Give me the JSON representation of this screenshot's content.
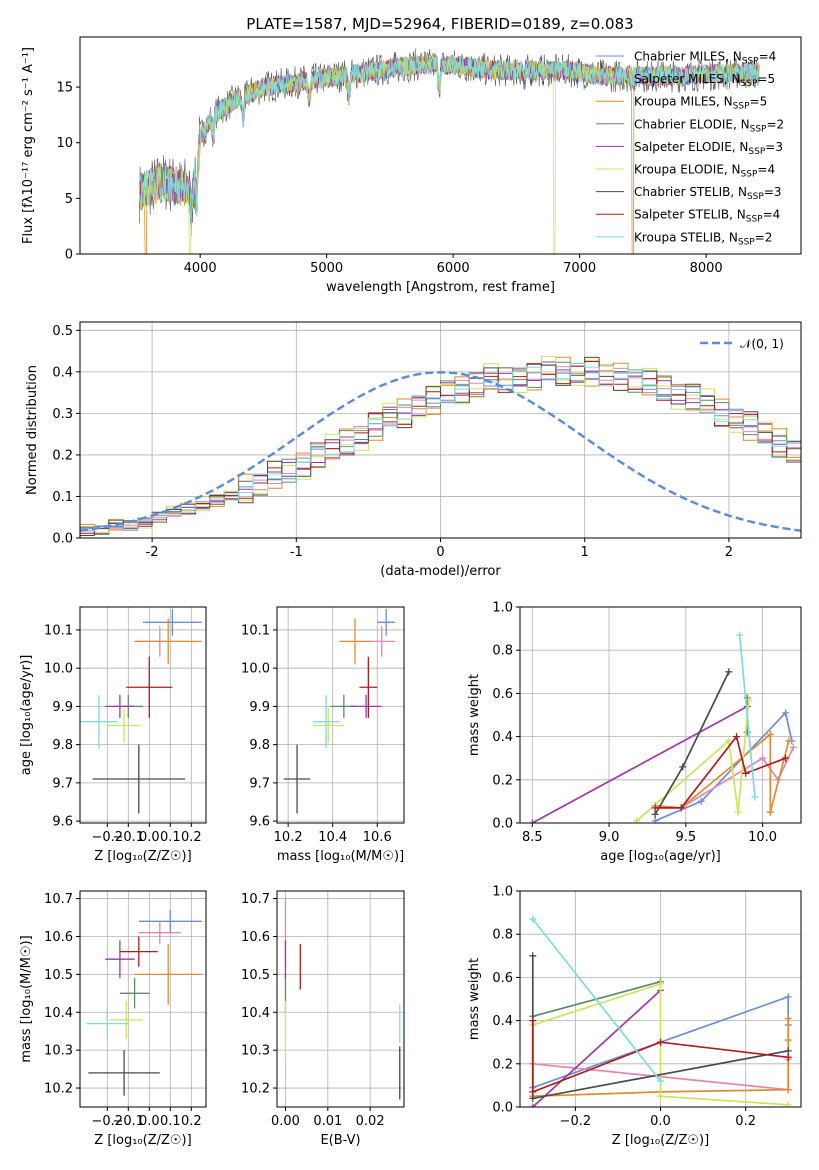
{
  "figure_title": "PLATE=1587, MJD=52964, FIBERID=0189, z=0.083",
  "colors": {
    "Chabrier MILES": "#6a8fd8",
    "Salpeter MILES": "#e487b2",
    "Kroupa MILES": "#e38a2f",
    "Chabrier ELODIE": "#5e8a64",
    "Salpeter ELODIE": "#9b3aa8",
    "Kroupa ELODIE": "#cde45c",
    "Chabrier STELIB": "#4a4a4a",
    "Salpeter STELIB": "#b01c1c",
    "Kroupa STELIB": "#7fdbe0",
    "normal": "#5a8ad8"
  },
  "chart_data": [
    {
      "id": "spectrum",
      "type": "line",
      "xlabel": "wavelength [Angstrom, rest frame]",
      "ylabel": "Flux [f$_\\lambda$10$^{-17}$ erg cm$^{-2}$ s$^{-1}$ A$^{-1}$]",
      "ylabel_display": "Flux [fλ10⁻¹⁷ erg cm⁻² s⁻¹ A⁻¹]",
      "xlim": [
        3050,
        8750
      ],
      "ylim": [
        0,
        19.5
      ],
      "xticks": [
        4000,
        5000,
        6000,
        7000,
        8000
      ],
      "yticks": [
        0,
        5,
        10,
        15
      ],
      "legend_position": "right",
      "legend": [
        "Chabrier MILES, N$_{SSP}$=4",
        "Salpeter MILES, N$_{SSP}$=5",
        "Kroupa MILES, N$_{SSP}$=5",
        "Chabrier ELODIE, N$_{SSP}$=2",
        "Salpeter ELODIE, N$_{SSP}$=3",
        "Kroupa ELODIE, N$_{SSP}$=4",
        "Chabrier STELIB, N$_{SSP}$=3",
        "Salpeter STELIB, N$_{SSP}$=4",
        "Kroupa STELIB, N$_{SSP}$=2"
      ],
      "legend_display": [
        [
          "Chabrier MILES, N",
          "SSP",
          "=4"
        ],
        [
          "Salpeter MILES, N",
          "SSP",
          "=5"
        ],
        [
          "Kroupa MILES, N",
          "SSP",
          "=5"
        ],
        [
          "Chabrier ELODIE, N",
          "SSP",
          "=2"
        ],
        [
          "Salpeter ELODIE, N",
          "SSP",
          "=3"
        ],
        [
          "Kroupa ELODIE, N",
          "SSP",
          "=4"
        ],
        [
          "Chabrier STELIB, N",
          "SSP",
          "=3"
        ],
        [
          "Salpeter STELIB, N",
          "SSP",
          "=4"
        ],
        [
          "Kroupa STELIB, N",
          "SSP",
          "=2"
        ]
      ],
      "continuum": {
        "x": [
          3520,
          3700,
          3850,
          3950,
          4000,
          4100,
          4300,
          4500,
          4800,
          5100,
          5400,
          5700,
          6000,
          6300,
          6600,
          6900,
          7200,
          7500,
          7800,
          8100,
          8400
        ],
        "y": [
          5.5,
          6.5,
          6.0,
          6.5,
          10.5,
          12.5,
          14.0,
          15.0,
          15.5,
          16.0,
          16.5,
          17.0,
          17.0,
          16.5,
          16.5,
          16.5,
          16.0,
          16.0,
          16.0,
          16.2,
          16.3
        ]
      },
      "features": [
        {
          "x": 3930,
          "y": 2.0
        },
        {
          "x": 3970,
          "y": 3.0
        },
        {
          "x": 4102,
          "y": 9.5
        },
        {
          "x": 4340,
          "y": 11.0
        },
        {
          "x": 4861,
          "y": 12.5
        },
        {
          "x": 5175,
          "y": 13.0
        },
        {
          "x": 5890,
          "y": 14.0
        },
        {
          "x": 6563,
          "y": 15.0
        }
      ],
      "spike_drops": [
        {
          "x": 3920,
          "y": 0.0,
          "series": "Kroupa ELODIE"
        },
        {
          "x": 6800,
          "y": 0.0,
          "series": "Kroupa ELODIE"
        },
        {
          "x": 7420,
          "y": 0.0,
          "series": "Kroupa MILES"
        },
        {
          "x": 3570,
          "y": 0.0,
          "series": "Kroupa MILES"
        }
      ]
    },
    {
      "id": "residuals",
      "type": "step-histogram",
      "xlabel": "(data-model)/error",
      "ylabel": "Normed distribution",
      "xlim": [
        -2.5,
        2.5
      ],
      "ylim": [
        0,
        0.52
      ],
      "xticks": [
        -2,
        -1,
        0,
        1,
        2
      ],
      "yticks": [
        0.0,
        0.1,
        0.2,
        0.3,
        0.4,
        0.5
      ],
      "grid": true,
      "legend": [
        "$\\mathcal{N}(0,1)$"
      ],
      "legend_display": "𝒩(0, 1)",
      "legend_position": "top-right",
      "bin_width": 0.1,
      "x_start": -2.5,
      "base": [
        0.02,
        0.02,
        0.03,
        0.03,
        0.04,
        0.05,
        0.06,
        0.07,
        0.08,
        0.09,
        0.1,
        0.12,
        0.13,
        0.15,
        0.16,
        0.18,
        0.2,
        0.21,
        0.23,
        0.25,
        0.27,
        0.29,
        0.3,
        0.32,
        0.33,
        0.35,
        0.36,
        0.37,
        0.38,
        0.38,
        0.39,
        0.39,
        0.4,
        0.4,
        0.4,
        0.4,
        0.39,
        0.39,
        0.38,
        0.37,
        0.36,
        0.35,
        0.34,
        0.32,
        0.3,
        0.29,
        0.27,
        0.25,
        0.23,
        0.21,
        0.19,
        0.18,
        0.16,
        0.14,
        0.13,
        0.11,
        0.1,
        0.09,
        0.07,
        0.06,
        0.05,
        0.05,
        0.04,
        0.03,
        0.03,
        0.03,
        0.02,
        0.02,
        0.02,
        0.02
      ],
      "series_offsets": [
        {
          "name": "Chabrier MILES",
          "amp": 0.02,
          "phase": 0.3
        },
        {
          "name": "Salpeter MILES",
          "amp": 0.02,
          "phase": 1.1
        },
        {
          "name": "Kroupa MILES",
          "amp": 0.035,
          "phase": 2.0
        },
        {
          "name": "Chabrier ELODIE",
          "amp": 0.03,
          "phase": 2.7
        },
        {
          "name": "Salpeter ELODIE",
          "amp": 0.025,
          "phase": 3.4
        },
        {
          "name": "Kroupa ELODIE",
          "amp": 0.04,
          "phase": 4.1
        },
        {
          "name": "Chabrier STELIB",
          "amp": 0.035,
          "phase": 4.8
        },
        {
          "name": "Salpeter STELIB",
          "amp": 0.03,
          "phase": 5.5
        },
        {
          "name": "Kroupa STELIB",
          "amp": 0.025,
          "phase": 6.0
        }
      ]
    },
    {
      "id": "age_vs_Z",
      "type": "errorbar",
      "xlabel": "Z [log$_{10}$($Z/Z_\\odot$)]",
      "xlabel_display": "Z [log₁₀(Z/Z☉)]",
      "ylabel": "age  [log$_{10}$($age/yr$)]",
      "ylabel_display": "age  [log₁₀(age/yr)]",
      "xlim": [
        -0.33,
        0.27
      ],
      "ylim": [
        9.595,
        10.16
      ],
      "xticks": [
        -0.2,
        -0.1,
        0.0,
        0.1,
        0.2
      ],
      "xticklabels": [
        "−0.2",
        "−0.1",
        "0.0",
        "0.1",
        "0.2"
      ],
      "yticks": [
        9.6,
        9.7,
        9.8,
        9.9,
        10.0,
        10.1
      ],
      "grid": true,
      "points": [
        {
          "name": "Chabrier MILES",
          "x": 0.11,
          "y": 10.12,
          "xerr": 0.14,
          "yerr": 0.035
        },
        {
          "name": "Salpeter MILES",
          "x": 0.05,
          "y": 10.07,
          "xerr": 0.11,
          "yerr": 0.04
        },
        {
          "name": "Kroupa MILES",
          "x": 0.09,
          "y": 10.07,
          "xerr": 0.16,
          "yerr": 0.06
        },
        {
          "name": "Chabrier ELODIE",
          "x": -0.1,
          "y": 9.9,
          "xerr": 0.07,
          "yerr": 0.03
        },
        {
          "name": "Salpeter ELODIE",
          "x": -0.14,
          "y": 9.9,
          "xerr": 0.07,
          "yerr": 0.03
        },
        {
          "name": "Kroupa ELODIE",
          "x": -0.12,
          "y": 9.85,
          "xerr": 0.08,
          "yerr": 0.045
        },
        {
          "name": "Chabrier STELIB",
          "x": -0.05,
          "y": 9.71,
          "xerr": 0.22,
          "yerr": 0.09
        },
        {
          "name": "Salpeter STELIB",
          "x": 0.0,
          "y": 9.95,
          "xerr": 0.11,
          "yerr": 0.08
        },
        {
          "name": "Kroupa STELIB",
          "x": -0.24,
          "y": 9.86,
          "xerr": 0.09,
          "yerr": 0.07
        }
      ]
    },
    {
      "id": "age_vs_mass",
      "type": "errorbar",
      "xlabel": "mass [log$_{10}$($M/M_\\odot$)]",
      "xlabel_display": "mass [log₁₀(M/M☉)]",
      "xlim": [
        10.15,
        10.72
      ],
      "ylim": [
        9.595,
        10.16
      ],
      "xticks": [
        10.2,
        10.4,
        10.6
      ],
      "yticks": [
        9.6,
        9.7,
        9.8,
        9.9,
        10.0,
        10.1
      ],
      "grid": true,
      "points": [
        {
          "name": "Chabrier MILES",
          "x": 10.64,
          "y": 10.12,
          "xerr": 0.04,
          "yerr": 0.035
        },
        {
          "name": "Salpeter MILES",
          "x": 10.62,
          "y": 10.07,
          "xerr": 0.06,
          "yerr": 0.04
        },
        {
          "name": "Kroupa MILES",
          "x": 10.5,
          "y": 10.07,
          "xerr": 0.07,
          "yerr": 0.06
        },
        {
          "name": "Chabrier ELODIE",
          "x": 10.45,
          "y": 9.9,
          "xerr": 0.06,
          "yerr": 0.03
        },
        {
          "name": "Salpeter ELODIE",
          "x": 10.55,
          "y": 9.9,
          "xerr": 0.07,
          "yerr": 0.03
        },
        {
          "name": "Kroupa ELODIE",
          "x": 10.38,
          "y": 9.85,
          "xerr": 0.07,
          "yerr": 0.045
        },
        {
          "name": "Chabrier STELIB",
          "x": 10.24,
          "y": 9.71,
          "xerr": 0.06,
          "yerr": 0.09
        },
        {
          "name": "Salpeter STELIB",
          "x": 10.56,
          "y": 9.95,
          "xerr": 0.04,
          "yerr": 0.08
        },
        {
          "name": "Kroupa STELIB",
          "x": 10.37,
          "y": 9.86,
          "xerr": 0.06,
          "yerr": 0.07
        }
      ]
    },
    {
      "id": "weight_vs_age",
      "type": "line",
      "xlabel": "age  [log$_{10}$($age/yr$)]",
      "xlabel_display": "age  [log₁₀(age/yr)]",
      "ylabel": "mass weight",
      "xlim": [
        8.42,
        10.25
      ],
      "ylim": [
        0,
        1.0
      ],
      "xticks": [
        8.5,
        9.0,
        9.5,
        10.0
      ],
      "yticks": [
        0.0,
        0.2,
        0.4,
        0.6,
        0.8,
        1.0
      ],
      "grid": true,
      "series": [
        {
          "name": "Chabrier MILES",
          "x": [
            9.3,
            9.6,
            10.15,
            10.19
          ],
          "y": [
            0.01,
            0.1,
            0.51,
            0.38
          ]
        },
        {
          "name": "Salpeter MILES",
          "x": [
            9.3,
            9.47,
            10.0,
            10.1,
            10.2
          ],
          "y": [
            0.08,
            0.07,
            0.3,
            0.2,
            0.35
          ]
        },
        {
          "name": "Kroupa MILES",
          "x": [
            9.3,
            9.47,
            10.05,
            10.05,
            10.17
          ],
          "y": [
            0.08,
            0.07,
            0.41,
            0.05,
            0.38
          ]
        },
        {
          "name": "Chabrier ELODIE",
          "x": [
            9.9,
            9.9
          ],
          "y": [
            0.42,
            0.58
          ]
        },
        {
          "name": "Salpeter ELODIE",
          "x": [
            8.5,
            9.9
          ],
          "y": [
            0.0,
            0.54
          ]
        },
        {
          "name": "Kroupa ELODIE",
          "x": [
            9.18,
            9.78,
            9.84,
            9.91
          ],
          "y": [
            0.01,
            0.38,
            0.05,
            0.57
          ]
        },
        {
          "name": "Chabrier STELIB",
          "x": [
            9.3,
            9.48,
            9.78
          ],
          "y": [
            0.04,
            0.26,
            0.7
          ]
        },
        {
          "name": "Salpeter STELIB",
          "x": [
            9.3,
            9.47,
            9.83,
            9.89,
            10.15
          ],
          "y": [
            0.07,
            0.07,
            0.4,
            0.23,
            0.3
          ]
        },
        {
          "name": "Kroupa STELIB",
          "x": [
            9.85,
            9.95
          ],
          "y": [
            0.87,
            0.12
          ]
        }
      ]
    },
    {
      "id": "mass_vs_Z",
      "type": "errorbar",
      "xlabel": "Z [log$_{10}$($Z/Z_\\odot$)]",
      "xlabel_display": "Z [log₁₀(Z/Z☉)]",
      "ylabel": "mass [log$_{10}$($M/M_\\odot$)]",
      "ylabel_display": "mass [log₁₀(M/M☉)]",
      "xlim": [
        -0.33,
        0.27
      ],
      "ylim": [
        10.15,
        10.72
      ],
      "xticks": [
        -0.2,
        -0.1,
        0.0,
        0.1,
        0.2
      ],
      "xticklabels": [
        "−0.2",
        "−0.1",
        "0.0",
        "0.1",
        "0.2"
      ],
      "yticks": [
        10.2,
        10.3,
        10.4,
        10.5,
        10.6,
        10.7
      ],
      "grid": true,
      "points": [
        {
          "name": "Chabrier MILES",
          "x": 0.1,
          "y": 10.64,
          "xerr": 0.15,
          "yerr": 0.03
        },
        {
          "name": "Salpeter MILES",
          "x": 0.05,
          "y": 10.61,
          "xerr": 0.1,
          "yerr": 0.03
        },
        {
          "name": "Kroupa MILES",
          "x": 0.09,
          "y": 10.5,
          "xerr": 0.16,
          "yerr": 0.08
        },
        {
          "name": "Chabrier ELODIE",
          "x": -0.07,
          "y": 10.45,
          "xerr": 0.07,
          "yerr": 0.04
        },
        {
          "name": "Salpeter ELODIE",
          "x": -0.14,
          "y": 10.54,
          "xerr": 0.07,
          "yerr": 0.05
        },
        {
          "name": "Kroupa ELODIE",
          "x": -0.11,
          "y": 10.38,
          "xerr": 0.08,
          "yerr": 0.05
        },
        {
          "name": "Chabrier STELIB",
          "x": -0.12,
          "y": 10.24,
          "xerr": 0.17,
          "yerr": 0.06
        },
        {
          "name": "Salpeter STELIB",
          "x": -0.05,
          "y": 10.56,
          "xerr": 0.09,
          "yerr": 0.04
        },
        {
          "name": "Kroupa STELIB",
          "x": -0.2,
          "y": 10.37,
          "xerr": 0.1,
          "yerr": 0.04
        }
      ]
    },
    {
      "id": "mass_vs_ebv",
      "type": "errorbar",
      "xlabel": "E(B-V)",
      "xlim": [
        -0.002,
        0.028
      ],
      "ylim": [
        10.15,
        10.72
      ],
      "xticks": [
        0.0,
        0.01,
        0.02
      ],
      "xticklabels": [
        "0.00",
        "0.01",
        "0.02"
      ],
      "yticks": [
        10.2,
        10.3,
        10.4,
        10.5,
        10.6,
        10.7
      ],
      "grid": true,
      "points": [
        {
          "name": "Salpeter MILES",
          "x": 0.0,
          "y": 10.61,
          "xerr": 0,
          "yerr": 0.09
        },
        {
          "name": "Chabrier ELODIE",
          "x": 0.0,
          "y": 10.45,
          "xerr": 0,
          "yerr": 0.05
        },
        {
          "name": "Salpeter ELODIE",
          "x": 0.0,
          "y": 10.54,
          "xerr": 0,
          "yerr": 0.05
        },
        {
          "name": "Kroupa ELODIE",
          "x": 0.0,
          "y": 10.35,
          "xerr": 0,
          "yerr": 0.08
        },
        {
          "name": "Salpeter STELIB",
          "x": 0.0035,
          "y": 10.52,
          "xerr": 0,
          "yerr": 0.06
        },
        {
          "name": "Kroupa STELIB",
          "x": 0.027,
          "y": 10.37,
          "xerr": 0,
          "yerr": 0.05
        },
        {
          "name": "Chabrier STELIB",
          "x": 0.027,
          "y": 10.24,
          "xerr": 0,
          "yerr": 0.07
        }
      ]
    },
    {
      "id": "weight_vs_Z",
      "type": "line",
      "xlabel": "Z [log$_{10}$($Z/Z_\\odot$)]",
      "xlabel_display": "Z [log₁₀(Z/Z☉)]",
      "ylabel": "mass weight",
      "xlim": [
        -0.33,
        0.33
      ],
      "ylim": [
        0,
        1.0
      ],
      "xticks": [
        -0.2,
        0.0,
        0.2
      ],
      "xticklabels": [
        "−0.2",
        "0.0",
        "0.2"
      ],
      "yticks": [
        0.0,
        0.2,
        0.4,
        0.6,
        0.8,
        1.0
      ],
      "grid": true,
      "series": [
        {
          "name": "Chabrier MILES",
          "x": [
            -0.3,
            0.0,
            0.3,
            0.3
          ],
          "y": [
            0.09,
            0.3,
            0.51,
            0.38
          ]
        },
        {
          "name": "Salpeter MILES",
          "x": [
            -0.3,
            0.3,
            0.3
          ],
          "y": [
            0.2,
            0.08,
            0.22
          ]
        },
        {
          "name": "Kroupa MILES",
          "x": [
            -0.3,
            0.0,
            0.3,
            0.3,
            0.3
          ],
          "y": [
            0.05,
            0.07,
            0.08,
            0.41,
            0.31
          ]
        },
        {
          "name": "Chabrier ELODIE",
          "x": [
            -0.3,
            0.0
          ],
          "y": [
            0.42,
            0.58
          ]
        },
        {
          "name": "Salpeter ELODIE",
          "x": [
            -0.3,
            0.0
          ],
          "y": [
            0.0,
            0.54
          ]
        },
        {
          "name": "Kroupa ELODIE",
          "x": [
            -0.3,
            0.0,
            0.0,
            0.3
          ],
          "y": [
            0.38,
            0.57,
            0.05,
            0.01
          ]
        },
        {
          "name": "Chabrier STELIB",
          "x": [
            -0.3,
            -0.3,
            0.3
          ],
          "y": [
            0.7,
            0.04,
            0.26
          ]
        },
        {
          "name": "Salpeter STELIB",
          "x": [
            -0.3,
            -0.3,
            0.0,
            0.3
          ],
          "y": [
            0.4,
            0.07,
            0.3,
            0.23
          ]
        },
        {
          "name": "Kroupa STELIB",
          "x": [
            -0.3,
            0.0
          ],
          "y": [
            0.87,
            0.12
          ]
        }
      ]
    }
  ]
}
